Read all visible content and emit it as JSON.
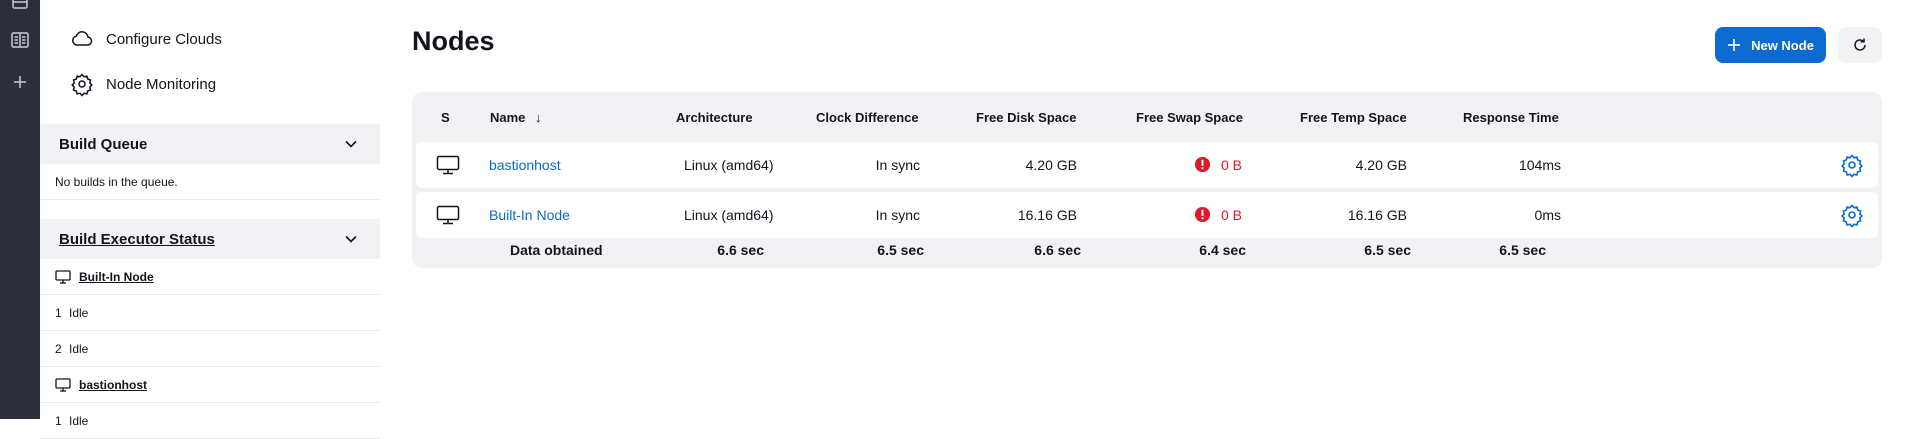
{
  "sidebar": {
    "tasks": [
      {
        "label": "Configure Clouds",
        "icon": "cloud-icon"
      },
      {
        "label": "Node Monitoring",
        "icon": "gear-icon"
      }
    ],
    "build_queue": {
      "title": "Build Queue",
      "empty_text": "No builds in the queue."
    },
    "executor_status": {
      "title": "Build Executor Status",
      "nodes": [
        {
          "name": "Built-In Node",
          "executors": [
            {
              "num": "1",
              "state": "Idle"
            },
            {
              "num": "2",
              "state": "Idle"
            }
          ]
        },
        {
          "name": "bastionhost",
          "executors": [
            {
              "num": "1",
              "state": "Idle"
            }
          ]
        }
      ]
    }
  },
  "main": {
    "title": "Nodes",
    "new_node_label": "New Node",
    "table": {
      "headers": {
        "s": "S",
        "name": "Name",
        "sort_indicator": "↓",
        "architecture": "Architecture",
        "clock": "Clock Difference",
        "disk": "Free Disk Space",
        "swap": "Free Swap Space",
        "temp": "Free Temp Space",
        "response": "Response Time"
      },
      "rows": [
        {
          "name": "bastionhost",
          "architecture": "Linux (amd64)",
          "clock": "In sync",
          "disk": "4.20 GB",
          "swap": "0 B",
          "temp": "4.20 GB",
          "response": "104ms"
        },
        {
          "name": "Built-In Node",
          "architecture": "Linux (amd64)",
          "clock": "In sync",
          "disk": "16.16 GB",
          "swap": "0 B",
          "temp": "16.16 GB",
          "response": "0ms"
        }
      ],
      "footer": {
        "label": "Data obtained",
        "architecture": "6.6 sec",
        "clock": "6.5 sec",
        "disk": "6.6 sec",
        "swap": "6.4 sec",
        "temp": "6.5 sec",
        "response": "6.5 sec"
      }
    }
  },
  "colors": {
    "accent": "#0b6bd0",
    "error": "#e0182a",
    "rail": "#2c2f3a",
    "panel": "#f2f2f5"
  }
}
